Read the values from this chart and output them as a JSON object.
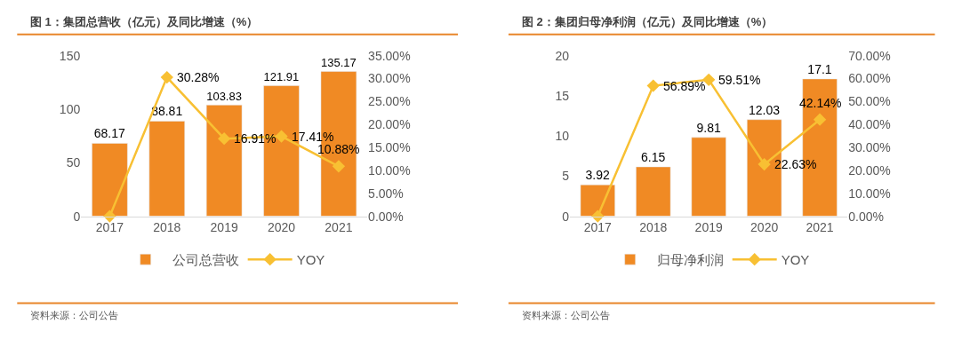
{
  "chart_data": [
    {
      "type": "bar",
      "title": "图 1：集团总营收（亿元）及同比增速（%）",
      "categories": [
        "2017",
        "2018",
        "2019",
        "2020",
        "2021"
      ],
      "series": [
        {
          "name": "公司总营收",
          "color": "#f08a24",
          "values": [
            68.17,
            88.81,
            103.83,
            121.91,
            135.17
          ],
          "value_labels": [
            "68.17",
            "88.81",
            "103.83",
            "121.91",
            "135.17"
          ]
        },
        {
          "name": "YOY",
          "type": "line",
          "axis": "y2",
          "color": "#f8c033",
          "marker": "diamond",
          "values": [
            0,
            30.28,
            16.91,
            17.41,
            10.88
          ],
          "value_labels": [
            null,
            "30.28%",
            "16.91%",
            "17.41%",
            "10.88%"
          ]
        }
      ],
      "ylim": [
        0,
        150
      ],
      "yticks": [
        0,
        50,
        100,
        150
      ],
      "y2lim": [
        0,
        35
      ],
      "y2ticks": [
        {
          "value": 0,
          "label": "0.00%"
        },
        {
          "value": 5,
          "label": "5.00%"
        },
        {
          "value": 10,
          "label": "10.00%"
        },
        {
          "value": 15,
          "label": "15.00%"
        },
        {
          "value": 20,
          "label": "20.00%"
        },
        {
          "value": 25,
          "label": "25.00%"
        },
        {
          "value": 30,
          "label": "30.00%"
        },
        {
          "value": 35,
          "label": "35.00%"
        }
      ],
      "legend": "bottom",
      "annotations": [
        "资料来源：公司公告"
      ]
    },
    {
      "type": "bar",
      "title": "图 2：集团归母净利润（亿元）及同比增速（%）",
      "categories": [
        "2017",
        "2018",
        "2019",
        "2020",
        "2021"
      ],
      "series": [
        {
          "name": "归母净利润",
          "color": "#f08a24",
          "values": [
            3.92,
            6.15,
            9.81,
            12.03,
            17.1
          ],
          "value_labels": [
            "3.92",
            "6.15",
            "9.81",
            "12.03",
            "17.1"
          ]
        },
        {
          "name": "YOY",
          "type": "line",
          "axis": "y2",
          "color": "#f8c033",
          "marker": "diamond",
          "values": [
            0,
            56.89,
            59.51,
            22.63,
            42.14
          ],
          "value_labels": [
            null,
            "56.89%",
            "59.51%",
            "22.63%",
            "42.14%"
          ]
        }
      ],
      "ylim": [
        0,
        20
      ],
      "yticks": [
        0,
        5,
        10,
        15,
        20
      ],
      "y2lim": [
        0,
        70
      ],
      "y2ticks": [
        {
          "value": 0,
          "label": "0.00%"
        },
        {
          "value": 10,
          "label": "10.00%"
        },
        {
          "value": 20,
          "label": "20.00%"
        },
        {
          "value": 30,
          "label": "30.00%"
        },
        {
          "value": 40,
          "label": "40.00%"
        },
        {
          "value": 50,
          "label": "50.00%"
        },
        {
          "value": 60,
          "label": "60.00%"
        },
        {
          "value": 70,
          "label": "70.00%"
        }
      ],
      "legend": "bottom",
      "annotations": [
        "资料来源：公司公告"
      ]
    }
  ]
}
